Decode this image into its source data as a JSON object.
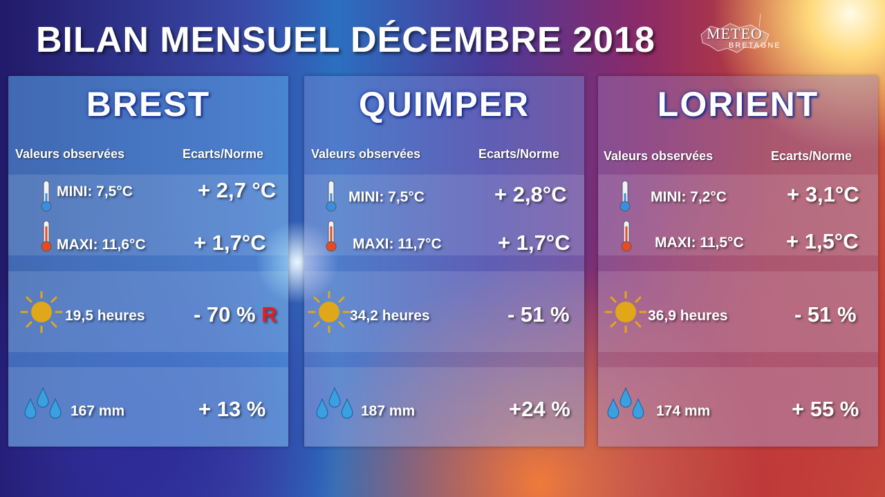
{
  "title": "BILAN MENSUEL DÉCEMBRE 2018",
  "logo": {
    "line1": "METEO",
    "line2": "BRETAGNE"
  },
  "headers": {
    "observed": "Valeurs observées",
    "deviation": "Ecarts/Norme"
  },
  "icons": {
    "cold": "thermometer-cold-icon",
    "hot": "thermometer-hot-icon",
    "sun": "sun-icon",
    "rain": "rain-drops-icon"
  },
  "colors": {
    "sun": "#e8b020",
    "record": "#e02020",
    "drop": "#3aa0e0"
  },
  "cities": [
    {
      "name": "BREST",
      "mini": "MINI: 7,5°C",
      "mini_dev": "+ 2,7 °C",
      "maxi": "MAXI: 11,6°C",
      "maxi_dev": "+ 1,7°C",
      "sun": "19,5  heures",
      "sun_dev": "- 70 %",
      "record": "R",
      "rain": "167 mm",
      "rain_dev": "+ 13 %"
    },
    {
      "name": "QUIMPER",
      "mini": "MINI:  7,5°C",
      "mini_dev": "+ 2,8°C",
      "maxi": "MAXI:  11,7°C",
      "maxi_dev": "+ 1,7°C",
      "sun": "34,2 heures",
      "sun_dev": "- 51 %",
      "record": "",
      "rain": "187 mm",
      "rain_dev": "+24 %"
    },
    {
      "name": "LORIENT",
      "mini": "MINI: 7,2°C",
      "mini_dev": "+ 3,1°C",
      "maxi": "MAXI: 11,5°C",
      "maxi_dev": "+ 1,5°C",
      "sun": "36,9 heures",
      "sun_dev": "- 51 %",
      "record": "",
      "rain": "174 mm",
      "rain_dev": "+ 55 %"
    }
  ]
}
